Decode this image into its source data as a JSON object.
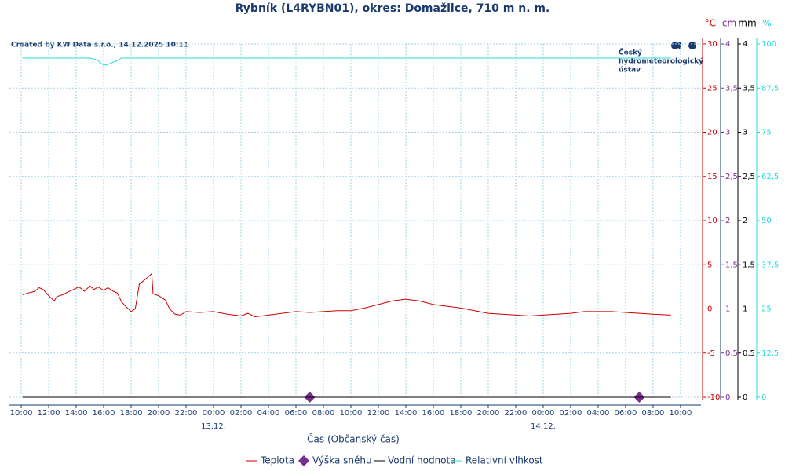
{
  "chart_data": {
    "type": "line",
    "title": "Rybník (L4RYBN01), okres: Domažlice, 710 m n. m.",
    "credit": "Created by KW Data s.r.o., 14.12.2025 10:11",
    "logo": [
      "Český",
      "hydrometeorologický",
      "ústav"
    ],
    "x_label": "Čas (Občanský čas)",
    "xlim": [
      -0.86,
      49.49
    ],
    "xticks": [
      {
        "value": 0,
        "label": "10:00"
      },
      {
        "value": 2,
        "label": "12:00"
      },
      {
        "value": 4,
        "label": "14:00"
      },
      {
        "value": 6,
        "label": "16:00"
      },
      {
        "value": 8,
        "label": "18:00"
      },
      {
        "value": 10,
        "label": "20:00"
      },
      {
        "value": 12,
        "label": "22:00"
      },
      {
        "value": 14,
        "label": "00:00"
      },
      {
        "value": 16,
        "label": "02:00"
      },
      {
        "value": 18,
        "label": "04:00"
      },
      {
        "value": 20,
        "label": "06:00"
      },
      {
        "value": 22,
        "label": "08:00"
      },
      {
        "value": 24,
        "label": "10:00"
      },
      {
        "value": 26,
        "label": "12:00"
      },
      {
        "value": 28,
        "label": "14:00"
      },
      {
        "value": 30,
        "label": "16:00"
      },
      {
        "value": 32,
        "label": "18:00"
      },
      {
        "value": 34,
        "label": "20:00"
      },
      {
        "value": 36,
        "label": "22:00"
      },
      {
        "value": 38,
        "label": "00:00"
      },
      {
        "value": 40,
        "label": "02:00"
      },
      {
        "value": 42,
        "label": "04:00"
      },
      {
        "value": 44,
        "label": "06:00"
      },
      {
        "value": 46,
        "label": "08:00"
      },
      {
        "value": 48,
        "label": "10:00"
      }
    ],
    "date_labels": [
      {
        "value": 14,
        "label": "13.12."
      },
      {
        "value": 38,
        "label": "14.12."
      }
    ],
    "grid": true,
    "axes": [
      {
        "unit": "°C",
        "color": "#cc0000",
        "lim": [
          -10,
          30
        ],
        "ticks": [
          -10,
          -5,
          0,
          5,
          10,
          15,
          20,
          25,
          30
        ]
      },
      {
        "unit": "cm",
        "color": "#7b2d8e",
        "lim": [
          0,
          4
        ],
        "ticks": [
          0,
          {
            "value": 0.5,
            "label": "0,5"
          },
          1,
          {
            "value": 1.5,
            "label": "1,5"
          },
          2,
          {
            "value": 2.5,
            "label": "2,5"
          },
          3,
          {
            "value": 3.5,
            "label": "3,5"
          },
          4
        ]
      },
      {
        "unit": "mm",
        "color": "#000000",
        "lim": [
          0,
          4
        ],
        "ticks": [
          0,
          {
            "value": 0.5,
            "label": "0,5"
          },
          1,
          {
            "value": 1.5,
            "label": "1,5"
          },
          2,
          {
            "value": 2.5,
            "label": "2,5"
          },
          3,
          {
            "value": 3.5,
            "label": "3,5"
          },
          4
        ]
      },
      {
        "unit": "%",
        "color": "#22dddd",
        "lim": [
          0,
          100
        ],
        "ticks": [
          0,
          {
            "value": 12.5,
            "label": "12,5"
          },
          25,
          {
            "value": 37.5,
            "label": "37,5"
          },
          50,
          {
            "value": 62.5,
            "label": "62,5"
          },
          75,
          {
            "value": 87.5,
            "label": "87,5"
          },
          100
        ]
      }
    ],
    "series": [
      {
        "name": "Teplota",
        "color": "#cc0000",
        "axis": 0,
        "marker": "line",
        "x": [
          0.1,
          0.5,
          1.0,
          1.3,
          1.6,
          2.0,
          2.4,
          2.6,
          3.0,
          3.4,
          3.8,
          4.2,
          4.6,
          5.0,
          5.3,
          5.6,
          6.0,
          6.3,
          6.7,
          7.0,
          7.3,
          7.6,
          8.0,
          8.3,
          8.6,
          9.0,
          9.5,
          9.6,
          10.0,
          10.5,
          10.8,
          11.2,
          11.6,
          12,
          13,
          14,
          15,
          16,
          16.5,
          17,
          18,
          19,
          20,
          21,
          22,
          23,
          24,
          25,
          26,
          27,
          28,
          29,
          30,
          31,
          32,
          33,
          34,
          35,
          36,
          37,
          38,
          39,
          40,
          41,
          42,
          43,
          44,
          45,
          46,
          47.3
        ],
        "values": [
          1.6,
          1.8,
          2.0,
          2.4,
          2.2,
          1.5,
          0.9,
          1.4,
          1.6,
          1.9,
          2.2,
          2.5,
          2.0,
          2.6,
          2.2,
          2.5,
          2.1,
          2.4,
          2.0,
          1.8,
          0.8,
          0.3,
          -0.3,
          0.0,
          2.8,
          3.3,
          4.0,
          1.7,
          1.5,
          1.0,
          0.0,
          -0.6,
          -0.7,
          -0.3,
          -0.4,
          -0.3,
          -0.6,
          -0.8,
          -0.5,
          -0.9,
          -0.7,
          -0.5,
          -0.3,
          -0.4,
          -0.3,
          -0.2,
          -0.2,
          0.1,
          0.5,
          0.9,
          1.1,
          0.9,
          0.5,
          0.3,
          0.1,
          -0.2,
          -0.5,
          -0.6,
          -0.7,
          -0.8,
          -0.7,
          -0.6,
          -0.5,
          -0.3,
          -0.3,
          -0.3,
          -0.4,
          -0.5,
          -0.6,
          -0.7
        ]
      },
      {
        "name": "Výška sněhu",
        "color": "#7b2d8e",
        "axis": 1,
        "marker": "diamond",
        "x": [
          21,
          45
        ],
        "values": [
          0,
          0
        ]
      },
      {
        "name": "Vodní hodnota",
        "color": "#000000",
        "axis": 2,
        "marker": "line",
        "x": [
          0.1,
          47.3
        ],
        "values": [
          0,
          0
        ]
      },
      {
        "name": "Relativní vlhkost",
        "color": "#22dddd",
        "axis": 3,
        "marker": "line",
        "x": [
          0.1,
          5.0,
          5.5,
          6.0,
          6.3,
          6.8,
          7.0,
          7.3,
          47.3
        ],
        "values": [
          96,
          96,
          95.5,
          94,
          94.2,
          95,
          95.3,
          96,
          96
        ]
      }
    ]
  }
}
